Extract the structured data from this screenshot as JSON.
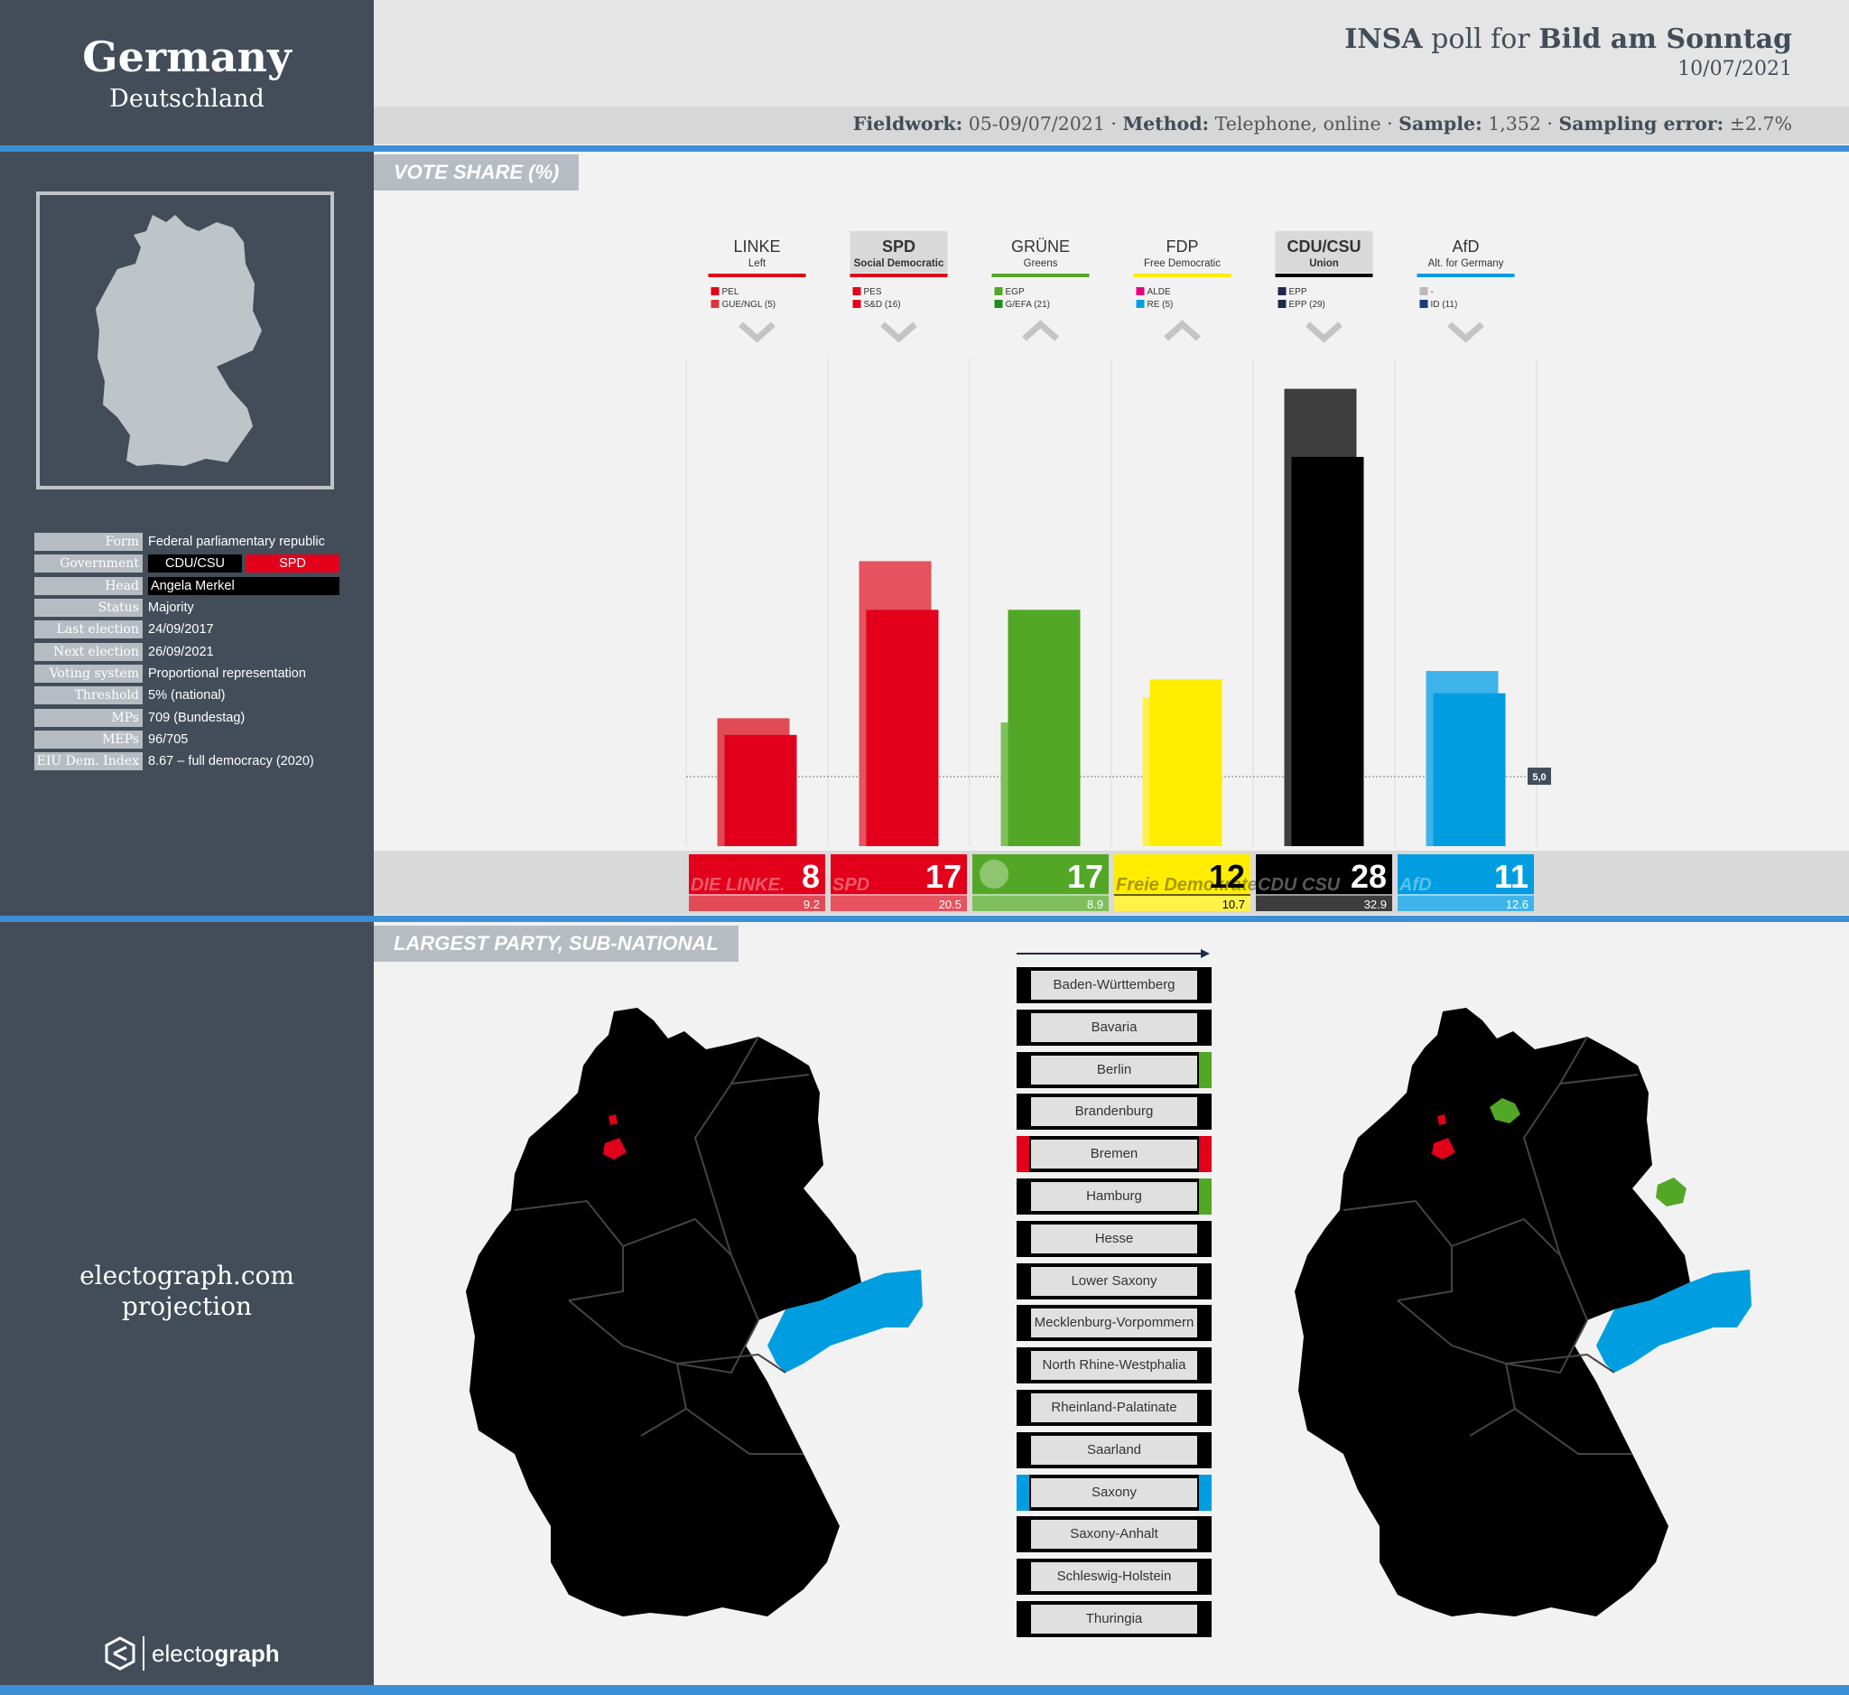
{
  "header": {
    "country": "Germany",
    "country_native": "Deutschland",
    "pollster": "INSA",
    "poll_for_text": "poll for",
    "client": "Bild am Sonntag",
    "date": "10/07/2021",
    "fieldwork_label": "Fieldwork:",
    "fieldwork": "05-09/07/2021",
    "method_label": "Method:",
    "method": "Telephone, online",
    "sample_label": "Sample:",
    "sample": "1,352",
    "error_label": "Sampling error:",
    "error": "±2.7%"
  },
  "info": {
    "rows": [
      {
        "key": "Form",
        "value": "Federal parliamentary republic"
      },
      {
        "key": "Government",
        "value": ""
      },
      {
        "key": "Head",
        "value": "Angela Merkel"
      },
      {
        "key": "Status",
        "value": "Majority"
      },
      {
        "key": "Last election",
        "value": "24/09/2017"
      },
      {
        "key": "Next election",
        "value": "26/09/2021"
      },
      {
        "key": "Voting system",
        "value": "Proportional representation"
      },
      {
        "key": "Threshold",
        "value": "5% (national)"
      },
      {
        "key": "MPs",
        "value": "709 (Bundestag)"
      },
      {
        "key": "MEPs",
        "value": "96/705"
      },
      {
        "key": "EIU Dem. Index",
        "value": "8.67 – full democracy (2020)"
      }
    ],
    "government_parties": [
      "CDU/CSU",
      "SPD"
    ]
  },
  "sidebar": {
    "projection_line1": "electograph.com",
    "projection_line2": "projection",
    "brand_a": "electo",
    "brand_b": "graph"
  },
  "sections": {
    "vote_share": "VOTE SHARE (%)",
    "largest_party": "LARGEST PARTY, SUB-NATIONAL"
  },
  "colors": {
    "LINKE": "#e2001a",
    "SPD": "#e2001a",
    "GRUENE": "#53a726",
    "FDP": "#ffed00",
    "CDU": "#000000",
    "AfD": "#009ee0",
    "accent": "#3a8fd6",
    "sidebar": "#424d59"
  },
  "chart_data": {
    "type": "bar",
    "threshold": 5.0,
    "threshold_label": "5,0",
    "ylim": [
      0,
      35
    ],
    "parties": [
      {
        "short": "LINKE",
        "desc": "Left",
        "eu": [
          [
            "PEL",
            "#e2001a"
          ],
          [
            "GUE/NGL (5)",
            "#d9363e"
          ]
        ],
        "trend": "down",
        "value": 8,
        "previous": 9.2,
        "color": "#e2001a",
        "prev_color": "#e04b55",
        "line": "#e2001a",
        "logo": "DIE LINKE.",
        "bold": false
      },
      {
        "short": "SPD",
        "desc": "Social Democratic",
        "eu": [
          [
            "PES",
            "#e2001a"
          ],
          [
            "S&D (16)",
            "#e2001a"
          ]
        ],
        "trend": "down",
        "value": 17,
        "previous": 20.5,
        "color": "#e2001a",
        "prev_color": "#e6525f",
        "line": "#e2001a",
        "logo": "SPD",
        "bold": true
      },
      {
        "short": "GRÜNE",
        "desc": "Greens",
        "eu": [
          [
            "EGP",
            "#53a726"
          ],
          [
            "G/EFA (21)",
            "#1e8c1e"
          ]
        ],
        "trend": "up",
        "value": 17,
        "previous": 8.9,
        "color": "#53a726",
        "prev_color": "#7fbf5c",
        "line": "#53a726",
        "logo": "",
        "bold": false
      },
      {
        "short": "FDP",
        "desc": "Free Democratic",
        "eu": [
          [
            "ALDE",
            "#e5007d"
          ],
          [
            "RE (5)",
            "#009ee0"
          ]
        ],
        "trend": "up",
        "value": 12,
        "previous": 10.7,
        "color": "#ffed00",
        "prev_color": "#fff14a",
        "line": "#ffed00",
        "logo": "Freie Demokraten",
        "bold": false
      },
      {
        "short": "CDU/CSU",
        "desc": "Union",
        "eu": [
          [
            "EPP",
            "#1d2a4d"
          ],
          [
            "EPP (29)",
            "#1d2a4d"
          ]
        ],
        "trend": "down",
        "value": 28,
        "previous": 32.9,
        "color": "#000000",
        "prev_color": "#3d3d3d",
        "line": "#000000",
        "logo": "CDU CSU",
        "bold": true
      },
      {
        "short": "AfD",
        "desc": "Alt. for Germany",
        "eu": [
          [
            "-",
            "#bbbbbb"
          ],
          [
            "ID (11)",
            "#1d3a7a"
          ]
        ],
        "trend": "down",
        "value": 11,
        "previous": 12.6,
        "color": "#009ee0",
        "prev_color": "#3fb4ea",
        "line": "#009ee0",
        "logo": "AfD",
        "bold": false
      }
    ]
  },
  "states": [
    {
      "name": "Baden-Württemberg",
      "left": "#000000",
      "right": "#000000"
    },
    {
      "name": "Bavaria",
      "left": "#000000",
      "right": "#000000"
    },
    {
      "name": "Berlin",
      "left": "#000000",
      "right": "#53a726"
    },
    {
      "name": "Brandenburg",
      "left": "#000000",
      "right": "#000000"
    },
    {
      "name": "Bremen",
      "left": "#e2001a",
      "right": "#e2001a"
    },
    {
      "name": "Hamburg",
      "left": "#000000",
      "right": "#53a726"
    },
    {
      "name": "Hesse",
      "left": "#000000",
      "right": "#000000"
    },
    {
      "name": "Lower Saxony",
      "left": "#000000",
      "right": "#000000"
    },
    {
      "name": "Mecklenburg-Vorpommern",
      "left": "#000000",
      "right": "#000000"
    },
    {
      "name": "North Rhine-Westphalia",
      "left": "#000000",
      "right": "#000000"
    },
    {
      "name": "Rheinland-Palatinate",
      "left": "#000000",
      "right": "#000000"
    },
    {
      "name": "Saarland",
      "left": "#000000",
      "right": "#000000"
    },
    {
      "name": "Saxony",
      "left": "#009ee0",
      "right": "#009ee0"
    },
    {
      "name": "Saxony-Anhalt",
      "left": "#000000",
      "right": "#000000"
    },
    {
      "name": "Schleswig-Holstein",
      "left": "#000000",
      "right": "#000000"
    },
    {
      "name": "Thuringia",
      "left": "#000000",
      "right": "#000000"
    }
  ]
}
